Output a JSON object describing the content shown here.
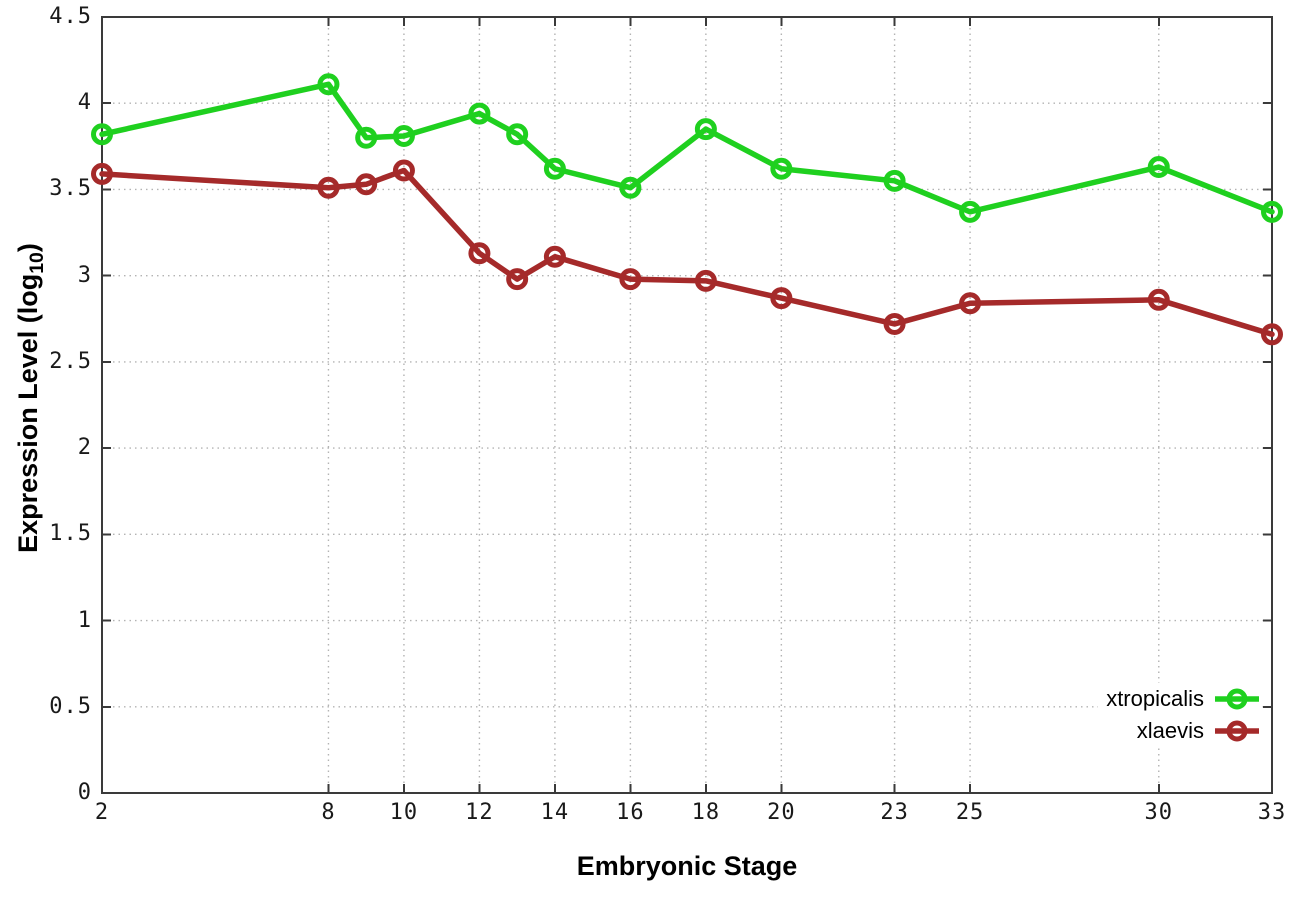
{
  "chart_data": {
    "type": "line",
    "title": "",
    "xlabel": "Embryonic Stage",
    "ylabel": "Expression Level (log10)",
    "ylabel_parts": {
      "prefix": "Expression Level (log",
      "sub": "10",
      "suffix": ")"
    },
    "xlim": [
      2,
      33
    ],
    "ylim": [
      0,
      4.5
    ],
    "grid": true,
    "legend_position": "bottom-right-inside",
    "x_ticks": [
      2,
      8,
      10,
      12,
      14,
      16,
      18,
      20,
      23,
      25,
      30,
      33
    ],
    "x_tick_labels": [
      "2",
      "8",
      "10",
      "12",
      "14",
      "16",
      "18",
      "20",
      "23",
      "25",
      "30",
      "33"
    ],
    "y_ticks": [
      0,
      0.5,
      1,
      1.5,
      2,
      2.5,
      3,
      3.5,
      4,
      4.5
    ],
    "y_tick_labels": [
      "0",
      "0.5",
      "1",
      "1.5",
      "2",
      "2.5",
      "3",
      "3.5",
      "4",
      "4.5"
    ],
    "x": [
      2,
      8,
      9,
      10,
      12,
      13,
      14,
      16,
      18,
      20,
      23,
      25,
      30,
      33
    ],
    "series": [
      {
        "name": "xtropicalis",
        "color": "#1fd01f",
        "values": [
          3.82,
          4.11,
          3.8,
          3.81,
          3.94,
          3.82,
          3.62,
          3.51,
          3.85,
          3.62,
          3.55,
          3.37,
          3.63,
          3.37
        ]
      },
      {
        "name": "xlaevis",
        "color": "#a52a2a",
        "values": [
          3.59,
          3.51,
          3.53,
          3.61,
          3.13,
          2.98,
          3.11,
          2.98,
          2.97,
          2.87,
          2.72,
          2.84,
          2.86,
          2.66
        ]
      }
    ],
    "style": {
      "border_color": "#3a3a3a",
      "grid_color": "#b3b3b3",
      "background": "#ffffff"
    }
  }
}
